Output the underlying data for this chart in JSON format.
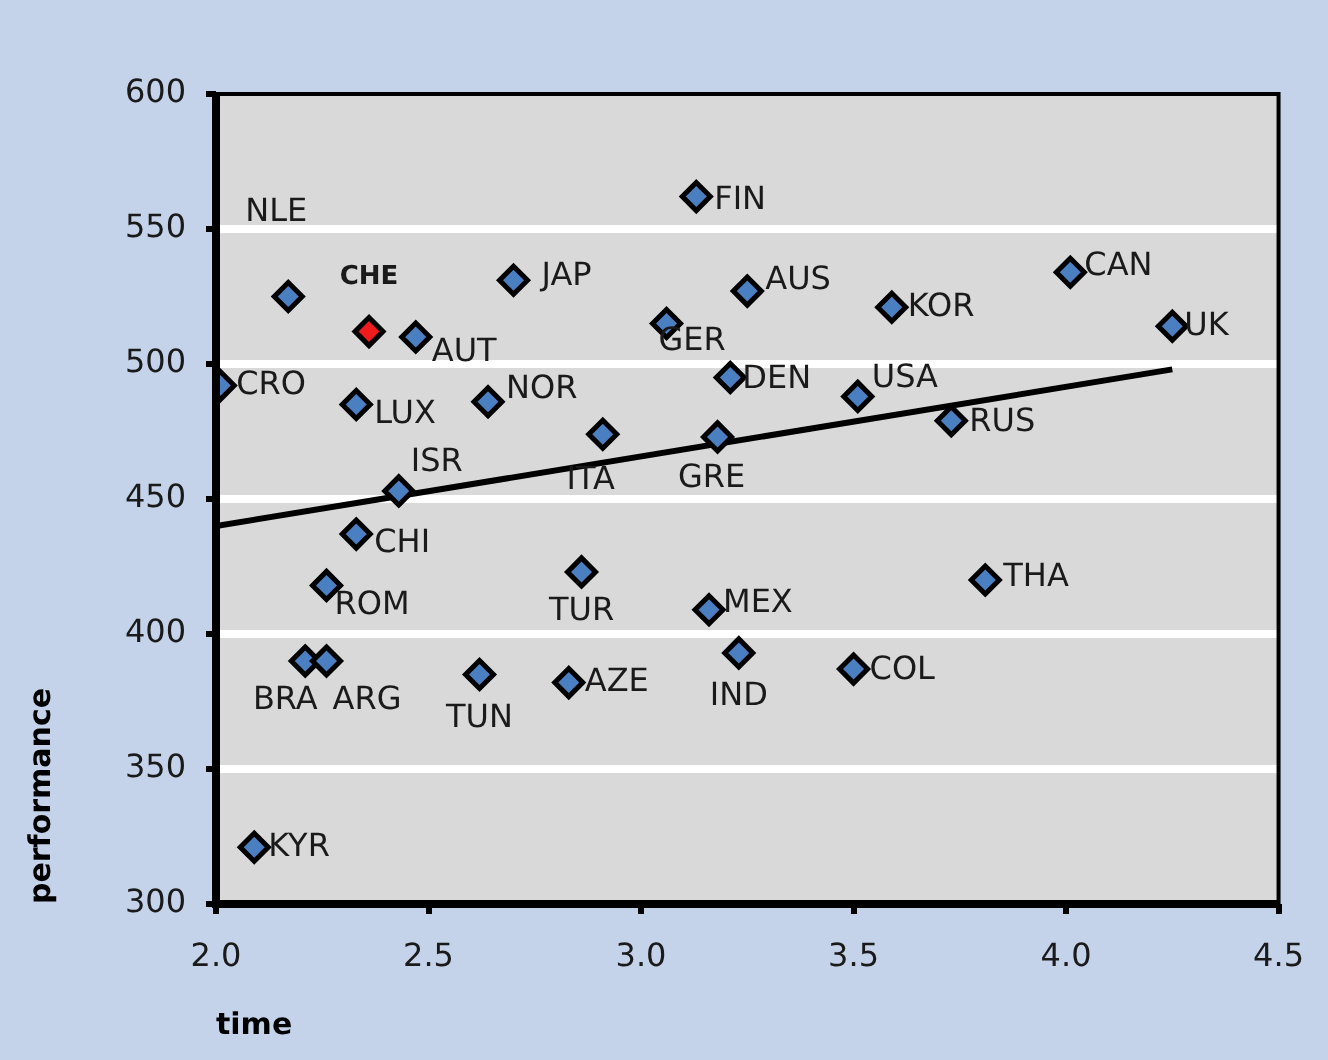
{
  "chart_data": {
    "type": "scatter",
    "xlabel": "time",
    "ylabel": "performance",
    "xlim": [
      2.0,
      4.5
    ],
    "xticks": [
      {
        "value": 2.0,
        "label": "2.0"
      },
      {
        "value": 2.5,
        "label": "2.5"
      },
      {
        "value": 3.0,
        "label": "3.0"
      },
      {
        "value": 3.5,
        "label": "3.5"
      },
      {
        "value": 4.0,
        "label": "4.0"
      },
      {
        "value": 4.5,
        "label": "4.5"
      }
    ],
    "ylim": [
      300,
      600
    ],
    "yticks": [
      300,
      350,
      400,
      450,
      500,
      550,
      600
    ],
    "grid": "y",
    "marker": "diamond",
    "legend": false,
    "series": [
      {
        "color": "#4a7fc1",
        "x": [
          2.17,
          2.47,
          2.7,
          2.01,
          2.33,
          2.64,
          2.43,
          2.33,
          2.91,
          3.13,
          3.06,
          3.25,
          3.59,
          4.01,
          4.25,
          3.21,
          3.51,
          3.18,
          3.73,
          2.26,
          2.21,
          2.26,
          2.62,
          2.83,
          2.86,
          2.09,
          3.16,
          3.23,
          3.5,
          3.81
        ],
        "values": [
          525,
          510,
          531,
          492,
          485,
          486,
          453,
          437,
          474,
          562,
          515,
          527,
          521,
          534,
          514,
          495,
          488,
          473,
          479,
          418,
          390,
          390,
          385,
          382,
          423,
          321,
          409,
          393,
          387,
          420
        ]
      },
      {
        "color": "#ee1c1c",
        "x": [
          2.36
        ],
        "values": [
          512
        ]
      },
      {
        "type": "line",
        "color": "#000000",
        "marker": "none",
        "x": [
          2.0,
          4.25
        ],
        "values": [
          440,
          498
        ]
      }
    ],
    "annotations": [
      {
        "text": "NLE",
        "x": 2.17,
        "y": 525
      },
      {
        "text": "CHE",
        "x": 2.36,
        "y": 512
      },
      {
        "text": "AUT",
        "x": 2.47,
        "y": 510
      },
      {
        "text": "JAP",
        "x": 2.7,
        "y": 531
      },
      {
        "text": "CRO",
        "x": 2.01,
        "y": 492
      },
      {
        "text": "LUX",
        "x": 2.33,
        "y": 485
      },
      {
        "text": "NOR",
        "x": 2.64,
        "y": 486
      },
      {
        "text": "ISR",
        "x": 2.43,
        "y": 453
      },
      {
        "text": "CHI",
        "x": 2.33,
        "y": 437
      },
      {
        "text": "ITA",
        "x": 2.91,
        "y": 474
      },
      {
        "text": "FIN",
        "x": 3.13,
        "y": 562
      },
      {
        "text": "GER",
        "x": 3.06,
        "y": 515
      },
      {
        "text": "AUS",
        "x": 3.25,
        "y": 527
      },
      {
        "text": "KOR",
        "x": 3.59,
        "y": 521
      },
      {
        "text": "CAN",
        "x": 4.01,
        "y": 534
      },
      {
        "text": "UK",
        "x": 4.25,
        "y": 514
      },
      {
        "text": "DEN",
        "x": 3.21,
        "y": 495
      },
      {
        "text": "USA",
        "x": 3.51,
        "y": 488
      },
      {
        "text": "GRE",
        "x": 3.18,
        "y": 473
      },
      {
        "text": "RUS",
        "x": 3.73,
        "y": 479
      },
      {
        "text": "ROM",
        "x": 2.26,
        "y": 418
      },
      {
        "text": "BRA",
        "x": 2.21,
        "y": 390
      },
      {
        "text": "ARG",
        "x": 2.26,
        "y": 390
      },
      {
        "text": "TUN",
        "x": 2.62,
        "y": 385
      },
      {
        "text": "AZE",
        "x": 2.83,
        "y": 382
      },
      {
        "text": "TUR",
        "x": 2.86,
        "y": 423
      },
      {
        "text": "KYR",
        "x": 2.09,
        "y": 321
      },
      {
        "text": "MEX",
        "x": 3.16,
        "y": 409
      },
      {
        "text": "IND",
        "x": 3.23,
        "y": 393
      },
      {
        "text": "COL",
        "x": 3.5,
        "y": 387
      },
      {
        "text": "THA",
        "x": 3.81,
        "y": 420
      }
    ]
  }
}
